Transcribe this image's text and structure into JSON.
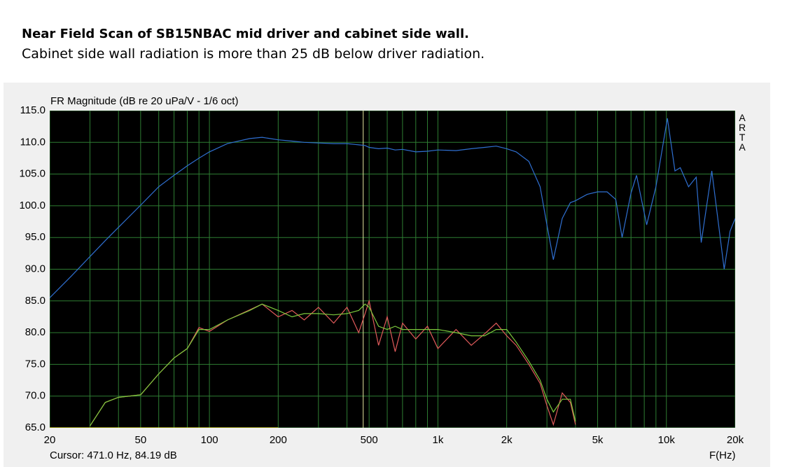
{
  "header": {
    "title": "Near Field Scan of SB15NBAC mid driver and cabinet side wall.",
    "subtitle": "Cabinet side wall radiation is more than 25 dB below driver radiation."
  },
  "chart_data": {
    "type": "line",
    "y_label": "FR Magnitude (dB re 20 uPa/V - 1/6 oct)",
    "x_label": "F(Hz)",
    "watermark": "ARTA",
    "xscale": "log",
    "grid": true,
    "grid_color": "#2e7d32",
    "background": "#000000",
    "xlim": [
      20,
      20000
    ],
    "ylim": [
      65,
      115
    ],
    "xticks": [
      20,
      50,
      100,
      200,
      500,
      {
        "value": 1000,
        "label": "1k"
      },
      {
        "value": 2000,
        "label": "2k"
      },
      {
        "value": 5000,
        "label": "5k"
      },
      {
        "value": 10000,
        "label": "10k"
      },
      {
        "value": 20000,
        "label": "20k"
      }
    ],
    "xgrid_minor": [
      30,
      40,
      60,
      70,
      80,
      90,
      300,
      400,
      600,
      700,
      800,
      900,
      3000,
      4000,
      6000,
      7000,
      8000,
      9000
    ],
    "yticks": [
      {
        "value": 65,
        "label": "65.0"
      },
      {
        "value": 70,
        "label": "70.0"
      },
      {
        "value": 75,
        "label": "75.0"
      },
      {
        "value": 80,
        "label": "80.0"
      },
      {
        "value": 85,
        "label": "85.0"
      },
      {
        "value": 90,
        "label": "90.0"
      },
      {
        "value": 95,
        "label": "95.0"
      },
      {
        "value": 100,
        "label": "100.0"
      },
      {
        "value": 105,
        "label": "105.0"
      },
      {
        "value": 110,
        "label": "110.0"
      },
      {
        "value": 115,
        "label": "115.0"
      }
    ],
    "cursor": {
      "value": 471,
      "label": "Cursor: 471.0 Hz, 84.19 dB",
      "color": "#e8e8a0"
    },
    "x": [
      20,
      25,
      30,
      35,
      40,
      50,
      60,
      70,
      80,
      90,
      100,
      120,
      150,
      170,
      200,
      230,
      260,
      300,
      350,
      400,
      450,
      480,
      500,
      550,
      600,
      650,
      700,
      800,
      900,
      1000,
      1200,
      1400,
      1600,
      1800,
      2000,
      2200,
      2500,
      2800,
      3000,
      3200,
      3500,
      3800,
      4000,
      4500,
      5000,
      5500,
      6000,
      6400,
      7000,
      7400,
      8200,
      9000,
      10100,
      10900,
      11500,
      12500,
      13500,
      14200,
      15800,
      17900,
      19000,
      20000
    ],
    "series": [
      {
        "color": "#2f6fd0",
        "values": [
          85.5,
          89,
          92,
          94.5,
          96.6,
          100.1,
          103,
          104.8,
          106.3,
          107.5,
          108.5,
          109.8,
          110.6,
          110.8,
          110.4,
          110.2,
          110,
          109.9,
          109.8,
          109.8,
          109.6,
          109.5,
          109.2,
          109,
          109.1,
          108.8,
          108.9,
          108.5,
          108.6,
          108.8,
          108.7,
          109,
          109.2,
          109.4,
          109,
          108.5,
          107,
          103,
          97,
          91.5,
          98,
          100.5,
          100.8,
          101.8,
          102.2,
          102.2,
          101,
          95,
          102,
          104.8,
          97,
          103,
          113.8,
          105.5,
          106,
          103,
          104.5,
          94.2,
          105.5,
          90,
          96,
          98
        ]
      },
      {
        "color": "#e05a5a",
        "values": [
          null,
          null,
          65.3,
          69,
          69.8,
          70.2,
          73.5,
          76,
          77.5,
          80.8,
          80.2,
          82,
          83.6,
          84.5,
          82.5,
          83.5,
          82,
          84,
          81.5,
          84,
          80,
          83,
          85,
          78,
          82.5,
          77,
          81.5,
          79,
          81,
          77.5,
          80.5,
          78,
          79.8,
          81.5,
          79.5,
          78,
          75,
          72,
          68.5,
          65.5,
          70.5,
          69,
          65.5,
          null,
          null,
          null,
          null,
          null,
          null,
          null,
          null,
          null,
          null,
          null,
          null,
          null,
          null,
          null,
          null,
          null,
          null,
          null
        ]
      },
      {
        "color": "#7cc83c",
        "values": [
          null,
          null,
          65.3,
          69,
          69.8,
          70.2,
          73.5,
          76,
          77.5,
          80.5,
          80.5,
          82,
          83.5,
          84.5,
          83.5,
          82.5,
          83,
          83,
          82.8,
          83,
          83.5,
          84.5,
          84,
          81,
          80.5,
          81,
          80.5,
          80.5,
          80.5,
          80.5,
          80,
          79.5,
          79.5,
          80.5,
          80.5,
          78.5,
          75.5,
          72.5,
          69.5,
          67.5,
          69.5,
          69.5,
          66,
          null,
          null,
          null,
          null,
          null,
          null,
          null,
          null,
          null,
          null,
          null,
          null,
          null,
          null,
          null,
          null,
          null,
          null,
          null
        ]
      },
      {
        "color": "#c8c800",
        "values": [
          65,
          65,
          65,
          65,
          65,
          65,
          65,
          65,
          65,
          65,
          65,
          65,
          65,
          65,
          65,
          null,
          null,
          null,
          null,
          null,
          null,
          null,
          null,
          null,
          null,
          null,
          null,
          null,
          null,
          null,
          null,
          null,
          null,
          null,
          null,
          null,
          null,
          null,
          null,
          null,
          null,
          null,
          null,
          null,
          null,
          null,
          null,
          null,
          null,
          null,
          null,
          null,
          null,
          null,
          null,
          null,
          null,
          null,
          null,
          null,
          null,
          null
        ]
      }
    ]
  }
}
